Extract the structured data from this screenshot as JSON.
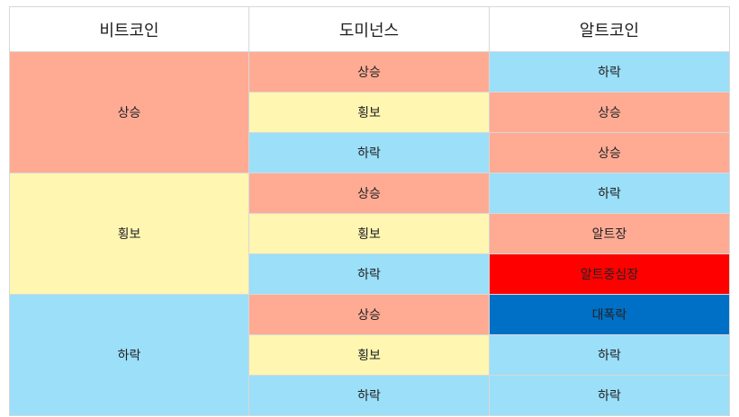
{
  "headers": [
    "비트코인",
    "도미넌스",
    "알트코인"
  ],
  "groups": [
    {
      "bitcoin": "상승",
      "rows": [
        {
          "dominance": "상승",
          "altcoin": "하락"
        },
        {
          "dominance": "횡보",
          "altcoin": "상승"
        },
        {
          "dominance": "하락",
          "altcoin": "상승"
        }
      ]
    },
    {
      "bitcoin": "횡보",
      "rows": [
        {
          "dominance": "상승",
          "altcoin": "하락"
        },
        {
          "dominance": "횡보",
          "altcoin": "알트장"
        },
        {
          "dominance": "하락",
          "altcoin": "알트중심장"
        }
      ]
    },
    {
      "bitcoin": "하락",
      "rows": [
        {
          "dominance": "상승",
          "altcoin": "대폭락"
        },
        {
          "dominance": "횡보",
          "altcoin": "하락"
        },
        {
          "dominance": "하락",
          "altcoin": "하락"
        }
      ]
    }
  ],
  "colors": {
    "up": "#ffab94",
    "sideways": "#fef6b1",
    "down": "#9bdff9",
    "alt_season_core": "#ff0000",
    "crash": "#0070c6",
    "border": "#d8d8d8"
  }
}
